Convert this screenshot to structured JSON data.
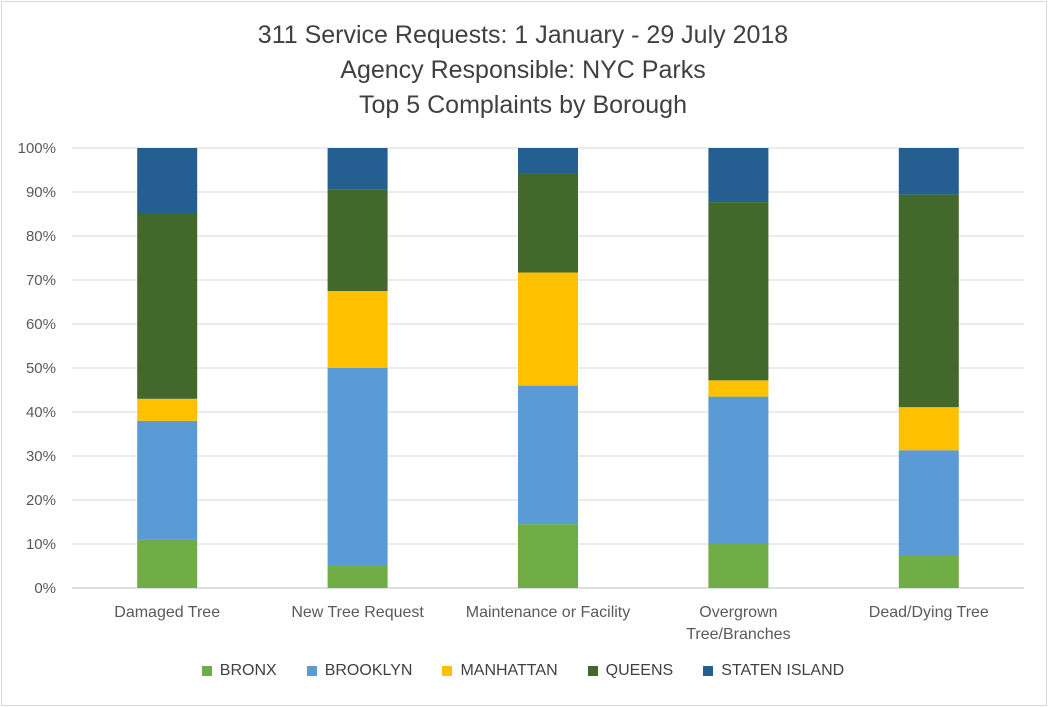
{
  "chart_data": {
    "type": "bar",
    "stacked": true,
    "percent": true,
    "title_lines": [
      "311 Service Requests: 1 January - 29 July 2018",
      "Agency Responsible:  NYC Parks",
      "Top 5 Complaints by Borough"
    ],
    "categories": [
      [
        "Damaged Tree"
      ],
      [
        "New Tree Request"
      ],
      [
        "Maintenance or Facility"
      ],
      [
        "Overgrown",
        "Tree/Branches"
      ],
      [
        "Dead/Dying Tree"
      ]
    ],
    "series": [
      {
        "name": "BRONX",
        "color": "#70ad47",
        "values": [
          11.0,
          5.0,
          14.5,
          10.0,
          7.5
        ]
      },
      {
        "name": "BROOKLYN",
        "color": "#5b9bd5",
        "values": [
          27.0,
          45.0,
          31.5,
          33.5,
          23.8
        ]
      },
      {
        "name": "MANHATTAN",
        "color": "#ffc000",
        "values": [
          5.0,
          17.5,
          25.7,
          3.7,
          9.8
        ]
      },
      {
        "name": "QUEENS",
        "color": "#43682b",
        "values": [
          42.0,
          23.0,
          22.5,
          40.5,
          48.3
        ]
      },
      {
        "name": "STATEN ISLAND",
        "color": "#255e91",
        "values": [
          15.0,
          9.5,
          5.8,
          12.3,
          10.6
        ]
      }
    ],
    "ylim": [
      0,
      100
    ],
    "yticks": [
      "0%",
      "10%",
      "20%",
      "30%",
      "40%",
      "50%",
      "60%",
      "70%",
      "80%",
      "90%",
      "100%"
    ],
    "grid": true,
    "legend_position": "bottom"
  }
}
